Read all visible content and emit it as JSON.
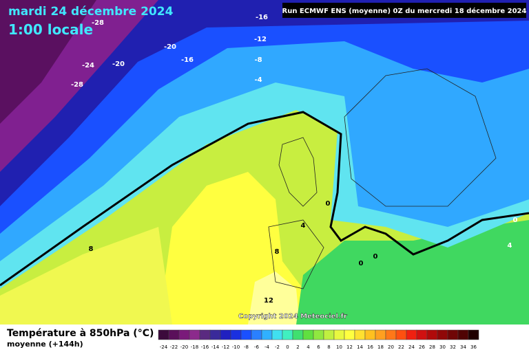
{
  "header": {
    "date": "mardi 24 décembre 2024",
    "time": "1:00 locale",
    "run": "Run ECMWF ENS (moyenne) 0Z du mercredi 18 décembre 2024"
  },
  "contour_labels": [
    -28,
    -20,
    -16,
    -24,
    -20,
    -28,
    -16,
    -12,
    -8,
    -4,
    0,
    4,
    8,
    8,
    0,
    0,
    12,
    0,
    4
  ],
  "copyright": "Copyright 2024 Meteociel.fr",
  "legend": {
    "title": "Température à 850hPa (°C)",
    "subtitle": "moyenne  (+144h)",
    "ticks": [
      -24,
      -22,
      -20,
      -18,
      -16,
      -14,
      -12,
      -10,
      -8,
      -6,
      -4,
      -2,
      0,
      2,
      4,
      6,
      8,
      10,
      12,
      14,
      16,
      18,
      20,
      22,
      24,
      26,
      28,
      30,
      32,
      34,
      36
    ],
    "colors": [
      "#3c0a3c",
      "#5a0f5a",
      "#7a1a7a",
      "#8c2a8c",
      "#5a2a80",
      "#3a2a9a",
      "#2020c0",
      "#1a30e0",
      "#1a50ff",
      "#2a80ff",
      "#30b0ff",
      "#40e0f0",
      "#40f0c0",
      "#40e070",
      "#60e040",
      "#90e840",
      "#c0f040",
      "#e8f840",
      "#ffff40",
      "#ffe030",
      "#ffc020",
      "#ffa020",
      "#ff7818",
      "#ff5010",
      "#f02010",
      "#d01010",
      "#b00a0a",
      "#900808",
      "#700606",
      "#500404",
      "#200000"
    ]
  }
}
